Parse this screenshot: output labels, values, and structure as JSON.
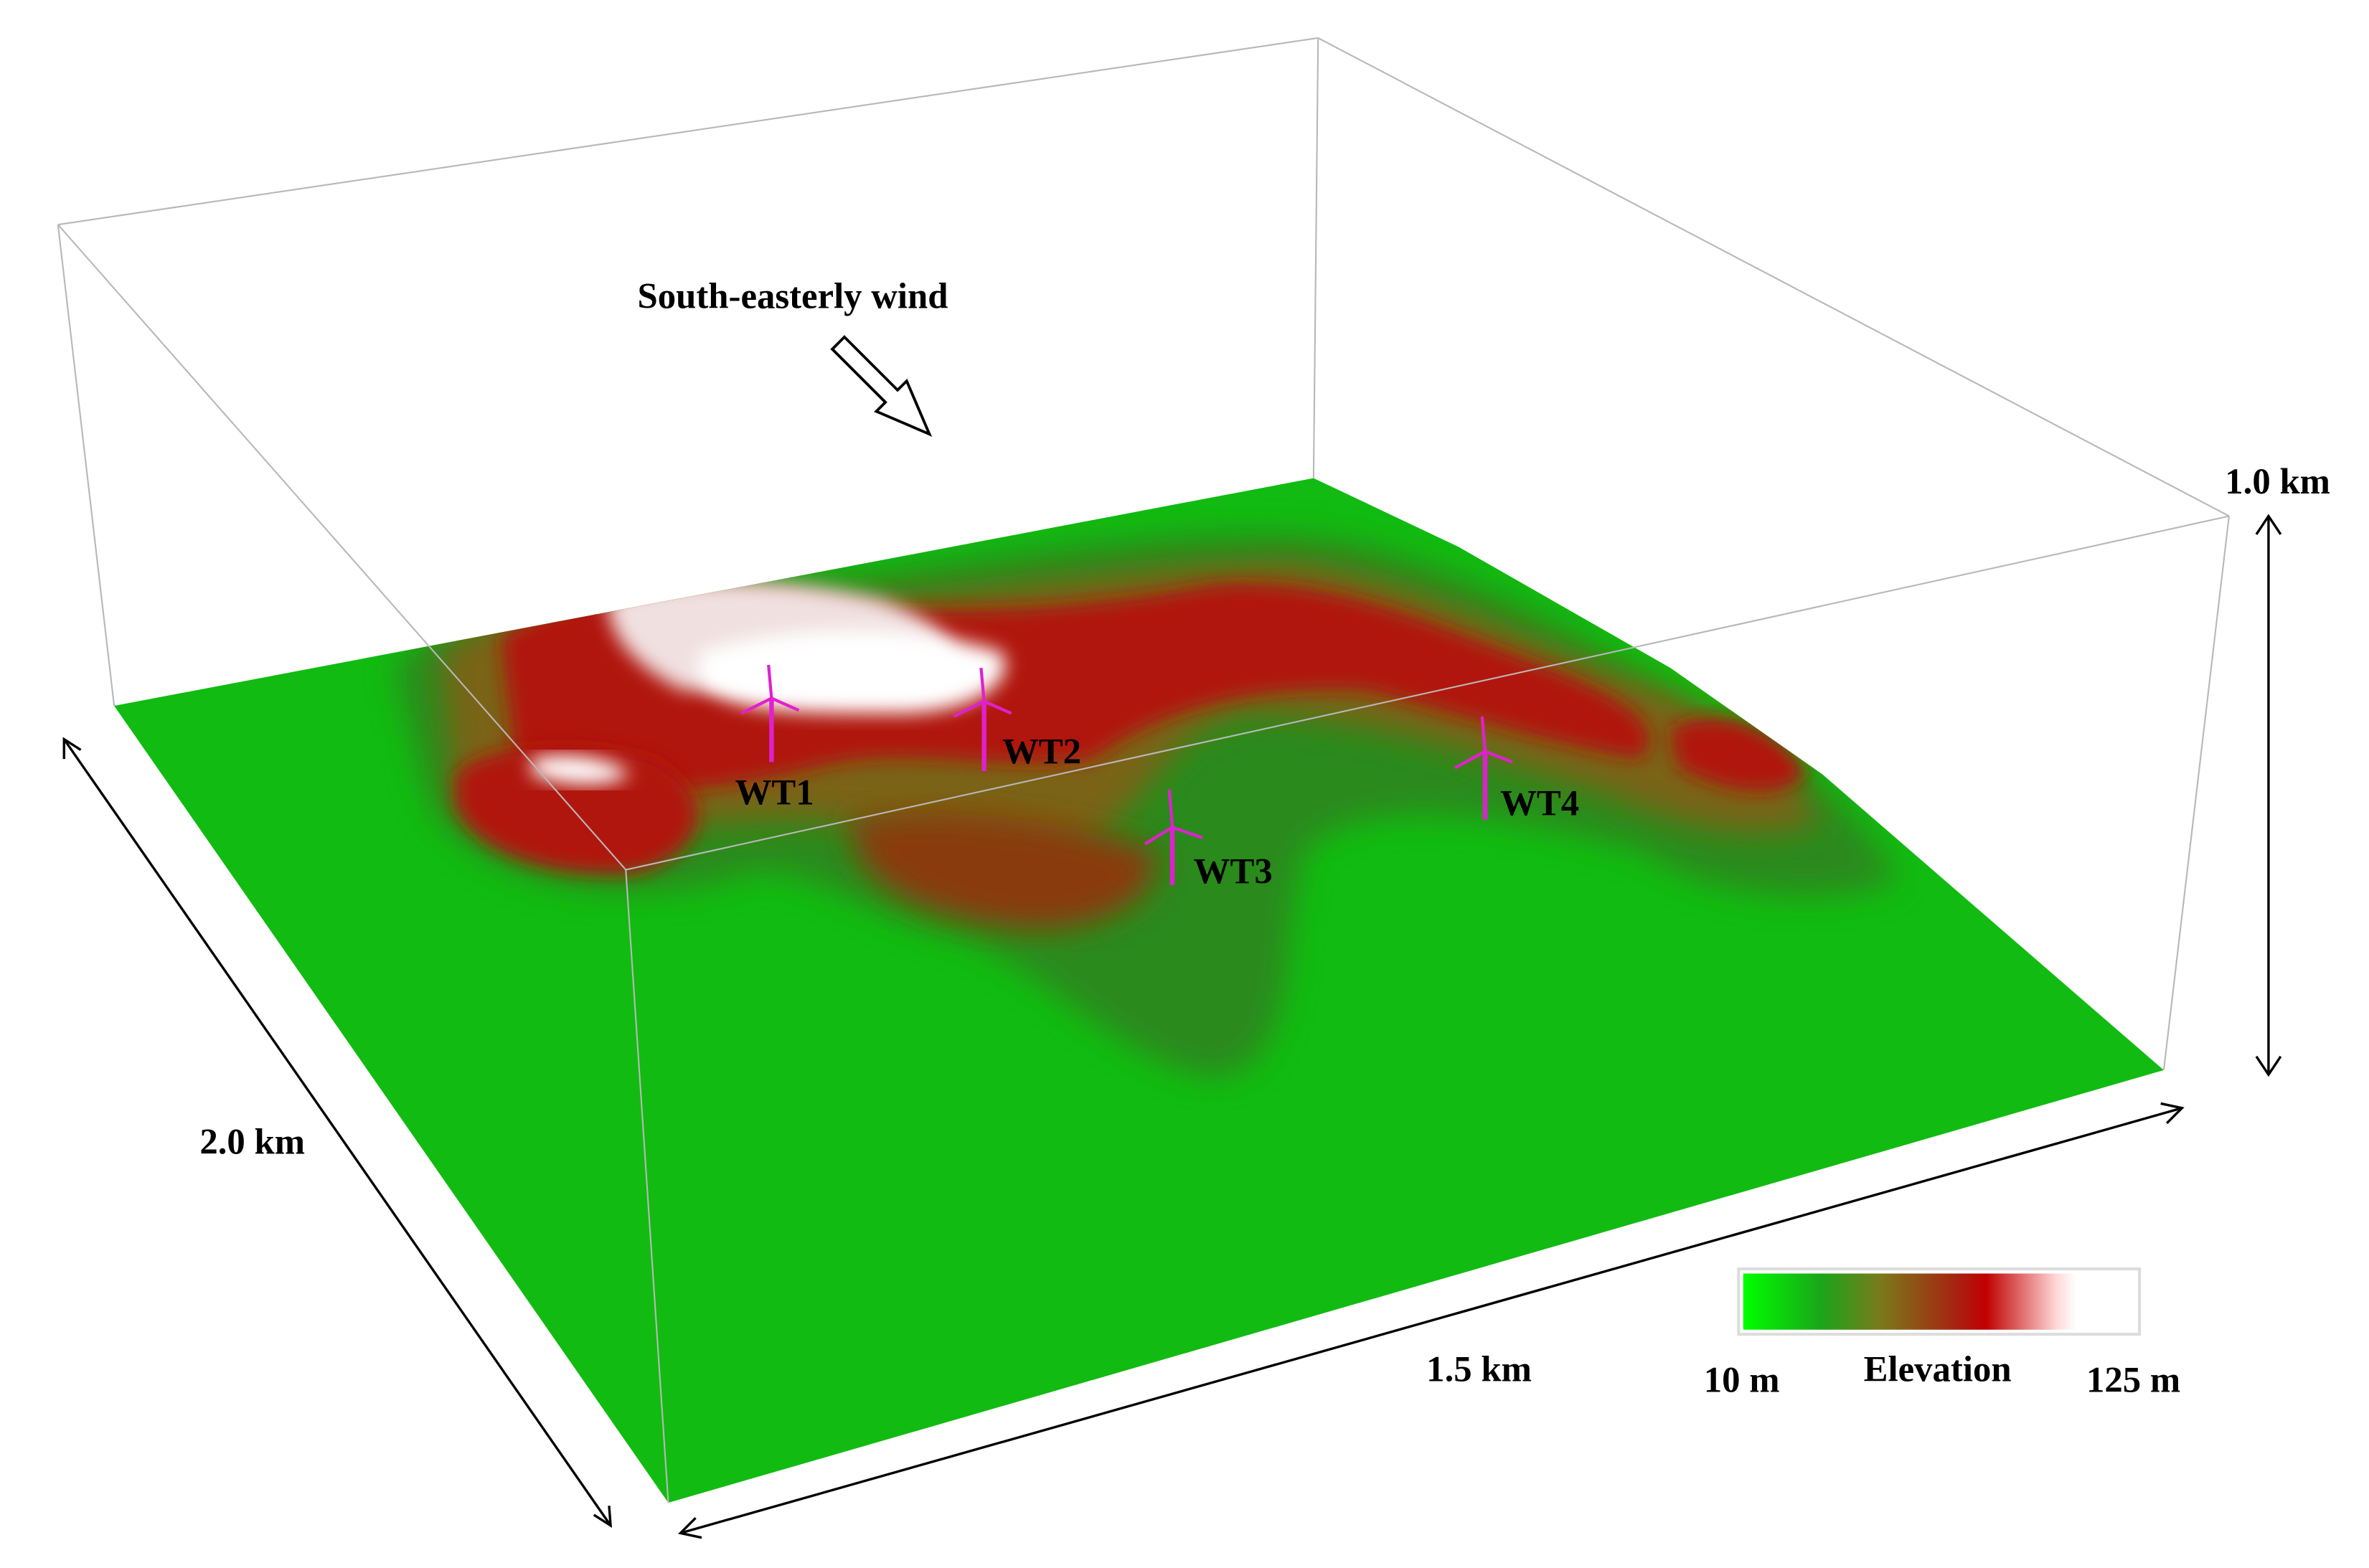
{
  "annotation": {
    "wind": "South-easterly wind"
  },
  "dimensions": {
    "height": "1.0 km",
    "depth": "2.0 km",
    "width": "1.5 km"
  },
  "turbines": [
    {
      "label": "WT1"
    },
    {
      "label": "WT2"
    },
    {
      "label": "WT3"
    },
    {
      "label": "WT4"
    }
  ],
  "colorbar": {
    "min_label": "10 m",
    "title": "Elevation",
    "max_label": "125 m"
  }
}
